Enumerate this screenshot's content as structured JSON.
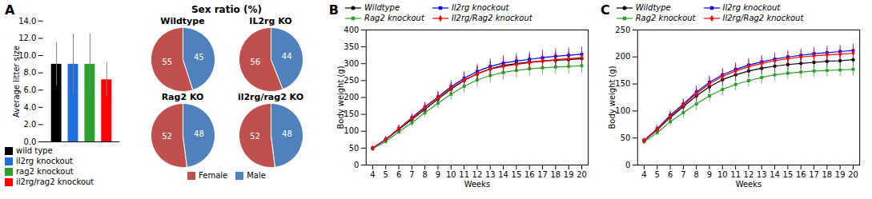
{
  "chart_data": [
    {
      "type": "bar",
      "annotations": [
        "A"
      ],
      "categories": [
        "wild type",
        "il2rg knockout",
        "rag2 knockout",
        "il2rg/rag2 knockout"
      ],
      "values": [
        9.0,
        9.0,
        9.0,
        7.2
      ],
      "errors": [
        2.5,
        3.5,
        3.5,
        2.0
      ],
      "colors": [
        "black",
        "#1f6fde",
        "#2ca02c",
        "red"
      ],
      "ylabel": "Average litter size",
      "ylim": [
        0,
        14.0
      ],
      "yticks": [
        {
          "value": 0,
          "label": "0.0"
        },
        {
          "value": 2,
          "label": "2.0"
        },
        {
          "value": 4,
          "label": "4.0"
        },
        {
          "value": 6,
          "label": "6.0"
        },
        {
          "value": 8,
          "label": "8.0"
        },
        {
          "value": 10,
          "label": "10.0"
        },
        {
          "value": 12,
          "label": "12.0"
        },
        {
          "value": 14,
          "label": "14.0"
        }
      ],
      "tick_labels": "y",
      "legend": "bottom"
    },
    {
      "type": "pie",
      "title": "Sex ratio (%)",
      "categories": [
        "Female",
        "Male"
      ],
      "colors": [
        "#c0504d",
        "#4f81bd"
      ],
      "series": [
        {
          "name": "Wildtype",
          "values": [
            55,
            45
          ]
        },
        {
          "name": "IL2rg KO",
          "values": [
            56,
            44
          ]
        },
        {
          "name": "Rag2 KO",
          "values": [
            52,
            48
          ]
        },
        {
          "name": "il2rg/rag2 KO",
          "values": [
            52,
            48
          ]
        }
      ],
      "data_labels": true,
      "legend": "bottom"
    },
    {
      "type": "line",
      "annotations": [
        "B"
      ],
      "x": [
        4,
        5,
        6,
        7,
        8,
        9,
        10,
        11,
        12,
        13,
        14,
        15,
        16,
        17,
        18,
        19,
        20
      ],
      "xlim": [
        3.5,
        20.5
      ],
      "xticks": [
        4,
        5,
        6,
        7,
        8,
        9,
        10,
        11,
        12,
        13,
        14,
        15,
        16,
        17,
        18,
        19,
        20
      ],
      "xlabel": "Weeks",
      "ylabel": "Body weight (g)",
      "ylim": [
        0,
        400
      ],
      "yticks": [
        0,
        50,
        100,
        150,
        200,
        250,
        300,
        350,
        400
      ],
      "legend": "top",
      "series": [
        {
          "name": "Wildtype",
          "color": "black",
          "marker": "circle",
          "values": [
            50,
            75,
            105,
            135,
            165,
            195,
            225,
            250,
            270,
            285,
            295,
            300,
            305,
            308,
            310,
            312,
            315
          ],
          "errors": [
            5,
            8,
            10,
            12,
            14,
            16,
            18,
            20,
            22,
            22,
            22,
            22,
            22,
            22,
            22,
            22,
            22
          ]
        },
        {
          "name": "Il2rg knockout",
          "color": "blue",
          "marker": "square",
          "values": [
            50,
            76,
            108,
            140,
            172,
            202,
            232,
            257,
            277,
            292,
            302,
            308,
            313,
            318,
            322,
            325,
            328
          ],
          "errors": [
            5,
            8,
            10,
            12,
            14,
            16,
            18,
            20,
            22,
            22,
            22,
            22,
            22,
            22,
            22,
            22,
            22
          ]
        },
        {
          "name": "Rag2 knockout",
          "color": "#2ca02c",
          "marker": "square",
          "values": [
            48,
            70,
            98,
            125,
            155,
            183,
            210,
            233,
            252,
            265,
            274,
            280,
            285,
            288,
            290,
            292,
            294
          ],
          "errors": [
            5,
            8,
            10,
            12,
            14,
            16,
            18,
            20,
            22,
            22,
            22,
            22,
            22,
            22,
            22,
            22,
            22
          ]
        },
        {
          "name": "Il2rg/Rag2 knockout",
          "color": "red",
          "marker": "diamond",
          "values": [
            50,
            76,
            108,
            138,
            170,
            200,
            228,
            252,
            270,
            284,
            292,
            298,
            303,
            308,
            312,
            315,
            318
          ],
          "errors": [
            5,
            8,
            10,
            12,
            14,
            16,
            18,
            20,
            22,
            22,
            22,
            22,
            22,
            22,
            22,
            22,
            22
          ]
        }
      ]
    },
    {
      "type": "line",
      "annotations": [
        "C"
      ],
      "x": [
        4,
        5,
        6,
        7,
        8,
        9,
        10,
        11,
        12,
        13,
        14,
        15,
        16,
        17,
        18,
        19,
        20
      ],
      "xlim": [
        3.5,
        20.5
      ],
      "xticks": [
        4,
        5,
        6,
        7,
        8,
        9,
        10,
        11,
        12,
        13,
        14,
        15,
        16,
        17,
        18,
        19,
        20
      ],
      "xlabel": "Weeks",
      "ylabel": "Body weight (g)",
      "ylim": [
        0,
        250
      ],
      "yticks": [
        0,
        50,
        100,
        150,
        200,
        250
      ],
      "legend": "top",
      "series": [
        {
          "name": "Wildtype",
          "color": "black",
          "marker": "circle",
          "values": [
            45,
            65,
            88,
            108,
            128,
            145,
            158,
            167,
            174,
            179,
            183,
            186,
            188,
            190,
            192,
            193,
            195
          ],
          "errors": [
            4,
            6,
            8,
            10,
            12,
            12,
            12,
            12,
            12,
            12,
            12,
            12,
            12,
            12,
            12,
            12,
            12
          ]
        },
        {
          "name": "Il2rg knockout",
          "color": "blue",
          "marker": "square",
          "values": [
            46,
            67,
            92,
            113,
            135,
            153,
            167,
            177,
            185,
            191,
            196,
            200,
            203,
            206,
            208,
            210,
            212
          ],
          "errors": [
            4,
            6,
            8,
            10,
            12,
            12,
            12,
            12,
            12,
            12,
            12,
            12,
            12,
            12,
            12,
            12,
            12
          ]
        },
        {
          "name": "Rag2 knockout",
          "color": "#2ca02c",
          "marker": "square",
          "values": [
            43,
            60,
            80,
            97,
            113,
            128,
            140,
            149,
            156,
            162,
            167,
            170,
            172,
            174,
            175,
            176,
            177
          ],
          "errors": [
            4,
            6,
            8,
            10,
            12,
            12,
            12,
            12,
            12,
            12,
            12,
            12,
            12,
            12,
            12,
            12,
            12
          ]
        },
        {
          "name": "Il2rg/Rag2 knockout",
          "color": "red",
          "marker": "diamond",
          "values": [
            45,
            66,
            90,
            111,
            132,
            150,
            164,
            174,
            182,
            188,
            193,
            197,
            200,
            202,
            204,
            205,
            207
          ],
          "errors": [
            4,
            6,
            8,
            10,
            12,
            12,
            12,
            12,
            12,
            12,
            12,
            12,
            12,
            12,
            12,
            12,
            12
          ]
        }
      ]
    }
  ]
}
